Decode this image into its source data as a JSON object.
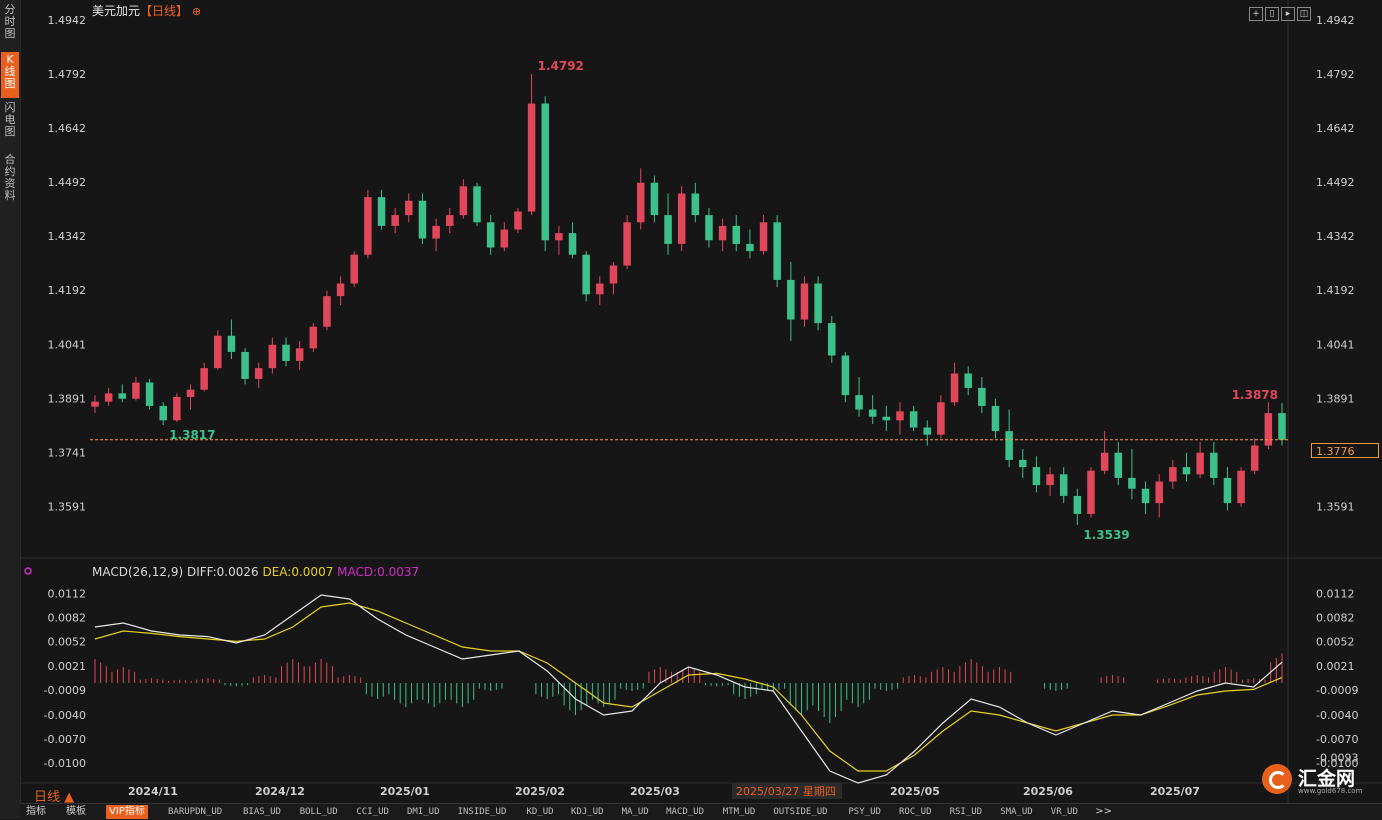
{
  "sidebar": {
    "tabs": [
      {
        "label": "分\n时\n图",
        "active": false
      },
      {
        "label": "K\n线\n图",
        "active": true
      },
      {
        "label": "闪\n电\n图",
        "active": false
      },
      {
        "label": "合\n约\n资\n料",
        "active": false
      }
    ]
  },
  "header": {
    "symbol": "美元加元",
    "period_tag": "【日线】",
    "add_icon": "circle-plus-icon"
  },
  "toolbar_icons": [
    "crosshair-icon",
    "fit-icon",
    "play-icon",
    "zoom-icon"
  ],
  "current_price_label": "1.3776",
  "macd_legend": {
    "name": "MACD(26,12,9)",
    "diff": "DIFF:0.0026",
    "dea": "DEA:0.0007",
    "macd": "MACD:0.0037",
    "colors": {
      "diff": "#e8e8e8",
      "dea": "#e6d21e",
      "macd": "#d22cc8"
    }
  },
  "period_label": "日线 ▲",
  "logo": {
    "name": "汇金网",
    "url": "www.gold678.com"
  },
  "bottom_bar": {
    "items": [
      "指标",
      "模板",
      "VIP指标",
      "BARUPDN_UD",
      "BIAS_UD",
      "BOLL_UD",
      "CCI_UD",
      "DMI_UD",
      "INSIDE_UD",
      "KD_UD",
      "KDJ_UD",
      "MA_UD",
      "MACD_UD",
      "MTM_UD",
      "OUTSIDE_UD",
      "PSY_UD",
      "ROC_UD",
      "RSI_UD",
      "SMA_UD",
      "VR_UD",
      ">>"
    ]
  },
  "colors": {
    "up": "#e0475b",
    "down": "#3cc18c",
    "accent": "#e8601c",
    "dashed_line": "#f39a3c"
  },
  "chart_data": [
    {
      "type": "candlestick",
      "title": "美元加元【日线】",
      "y_ticks": [
        "1.4942",
        "1.4792",
        "1.4642",
        "1.4492",
        "1.4342",
        "1.4192",
        "1.4041",
        "1.3891",
        "1.3741",
        "1.3591"
      ],
      "ylim": [
        1.3442,
        1.4942
      ],
      "x_ticks": [
        "2024/11",
        "2024/12",
        "2025/01",
        "2025/02",
        "2025/03",
        "2025/03/27 星期四",
        "2025/05",
        "2025/06",
        "2025/07"
      ],
      "current_price": 1.3776,
      "annotations": [
        {
          "text": "1.4792",
          "value": 1.4792,
          "kind": "high"
        },
        {
          "text": "1.3817",
          "value": 1.3817,
          "kind": "low"
        },
        {
          "text": "1.3539",
          "value": 1.3539,
          "kind": "low"
        },
        {
          "text": "1.3878",
          "value": 1.3878,
          "kind": "high"
        }
      ],
      "ohlc_sampled": [
        [
          1.3868,
          1.39,
          1.385,
          1.3882
        ],
        [
          1.3882,
          1.392,
          1.387,
          1.3905
        ],
        [
          1.3905,
          1.393,
          1.388,
          1.389
        ],
        [
          1.389,
          1.395,
          1.3885,
          1.3935
        ],
        [
          1.3935,
          1.3945,
          1.386,
          1.387
        ],
        [
          1.387,
          1.388,
          1.3817,
          1.383
        ],
        [
          1.383,
          1.3905,
          1.3825,
          1.3895
        ],
        [
          1.3895,
          1.393,
          1.386,
          1.3915
        ],
        [
          1.3915,
          1.399,
          1.391,
          1.3975
        ],
        [
          1.3975,
          1.408,
          1.397,
          1.4065
        ],
        [
          1.4065,
          1.411,
          1.4,
          1.402
        ],
        [
          1.402,
          1.403,
          1.393,
          1.3945
        ],
        [
          1.3945,
          1.399,
          1.392,
          1.3975
        ],
        [
          1.3975,
          1.406,
          1.396,
          1.404
        ],
        [
          1.404,
          1.406,
          1.398,
          1.3995
        ],
        [
          1.3995,
          1.405,
          1.397,
          1.403
        ],
        [
          1.403,
          1.41,
          1.402,
          1.409
        ],
        [
          1.409,
          1.419,
          1.408,
          1.4175
        ],
        [
          1.4175,
          1.423,
          1.415,
          1.421
        ],
        [
          1.421,
          1.43,
          1.42,
          1.429
        ],
        [
          1.429,
          1.447,
          1.428,
          1.445
        ],
        [
          1.445,
          1.447,
          1.436,
          1.437
        ],
        [
          1.437,
          1.442,
          1.435,
          1.44
        ],
        [
          1.44,
          1.446,
          1.438,
          1.444
        ],
        [
          1.444,
          1.446,
          1.432,
          1.4335
        ],
        [
          1.4335,
          1.439,
          1.43,
          1.437
        ],
        [
          1.437,
          1.442,
          1.435,
          1.44
        ],
        [
          1.44,
          1.45,
          1.439,
          1.448
        ],
        [
          1.448,
          1.449,
          1.437,
          1.438
        ],
        [
          1.438,
          1.44,
          1.429,
          1.431
        ],
        [
          1.431,
          1.438,
          1.43,
          1.436
        ],
        [
          1.436,
          1.442,
          1.435,
          1.441
        ],
        [
          1.441,
          1.4792,
          1.44,
          1.471
        ],
        [
          1.471,
          1.473,
          1.43,
          1.433
        ],
        [
          1.433,
          1.437,
          1.429,
          1.435
        ],
        [
          1.435,
          1.438,
          1.428,
          1.429
        ],
        [
          1.429,
          1.43,
          1.416,
          1.418
        ],
        [
          1.418,
          1.423,
          1.415,
          1.421
        ],
        [
          1.421,
          1.427,
          1.418,
          1.426
        ],
        [
          1.426,
          1.44,
          1.425,
          1.438
        ],
        [
          1.438,
          1.453,
          1.436,
          1.449
        ],
        [
          1.449,
          1.451,
          1.438,
          1.44
        ],
        [
          1.44,
          1.446,
          1.429,
          1.432
        ],
        [
          1.432,
          1.448,
          1.43,
          1.446
        ],
        [
          1.446,
          1.449,
          1.438,
          1.44
        ],
        [
          1.44,
          1.442,
          1.431,
          1.433
        ],
        [
          1.433,
          1.439,
          1.43,
          1.437
        ],
        [
          1.437,
          1.44,
          1.43,
          1.432
        ],
        [
          1.432,
          1.436,
          1.428,
          1.43
        ],
        [
          1.43,
          1.44,
          1.429,
          1.438
        ],
        [
          1.438,
          1.44,
          1.42,
          1.422
        ],
        [
          1.422,
          1.427,
          1.405,
          1.411
        ],
        [
          1.411,
          1.423,
          1.409,
          1.421
        ],
        [
          1.421,
          1.423,
          1.408,
          1.41
        ],
        [
          1.41,
          1.412,
          1.399,
          1.401
        ],
        [
          1.401,
          1.402,
          1.388,
          1.39
        ],
        [
          1.39,
          1.395,
          1.384,
          1.386
        ],
        [
          1.386,
          1.39,
          1.382,
          1.384
        ],
        [
          1.384,
          1.387,
          1.38,
          1.383
        ],
        [
          1.383,
          1.388,
          1.379,
          1.3855
        ],
        [
          1.3855,
          1.387,
          1.38,
          1.381
        ],
        [
          1.381,
          1.383,
          1.376,
          1.379
        ],
        [
          1.379,
          1.39,
          1.378,
          1.388
        ],
        [
          1.388,
          1.399,
          1.387,
          1.396
        ],
        [
          1.396,
          1.398,
          1.39,
          1.392
        ],
        [
          1.392,
          1.395,
          1.385,
          1.387
        ],
        [
          1.387,
          1.389,
          1.378,
          1.38
        ],
        [
          1.38,
          1.386,
          1.37,
          1.372
        ],
        [
          1.372,
          1.375,
          1.367,
          1.37
        ],
        [
          1.37,
          1.373,
          1.363,
          1.365
        ],
        [
          1.365,
          1.37,
          1.362,
          1.368
        ],
        [
          1.368,
          1.37,
          1.36,
          1.362
        ],
        [
          1.362,
          1.364,
          1.3539,
          1.357
        ],
        [
          1.357,
          1.37,
          1.356,
          1.369
        ],
        [
          1.369,
          1.38,
          1.368,
          1.374
        ],
        [
          1.374,
          1.377,
          1.365,
          1.367
        ],
        [
          1.367,
          1.375,
          1.361,
          1.364
        ],
        [
          1.364,
          1.366,
          1.357,
          1.36
        ],
        [
          1.36,
          1.368,
          1.356,
          1.366
        ],
        [
          1.366,
          1.372,
          1.364,
          1.37
        ],
        [
          1.37,
          1.374,
          1.366,
          1.368
        ],
        [
          1.368,
          1.377,
          1.367,
          1.374
        ],
        [
          1.374,
          1.377,
          1.365,
          1.367
        ],
        [
          1.367,
          1.37,
          1.358,
          1.36
        ],
        [
          1.36,
          1.37,
          1.359,
          1.369
        ],
        [
          1.369,
          1.378,
          1.368,
          1.376
        ],
        [
          1.376,
          1.388,
          1.375,
          1.385
        ],
        [
          1.385,
          1.3878,
          1.376,
          1.3776
        ]
      ]
    },
    {
      "type": "macd",
      "y_ticks": [
        "0.0112",
        "0.0082",
        "0.0052",
        "0.0021",
        "-0.0009",
        "-0.0040",
        "-0.0070",
        "-0.0100"
      ],
      "ylim": [
        -0.0125,
        0.0125
      ],
      "current_value_label": "-0.0093",
      "diff": [
        0.007,
        0.0075,
        0.0065,
        0.006,
        0.0058,
        0.005,
        0.006,
        0.0085,
        0.011,
        0.0105,
        0.008,
        0.006,
        0.0045,
        0.003,
        0.0035,
        0.004,
        0.0015,
        -0.002,
        -0.004,
        -0.0035,
        0.0,
        0.002,
        0.001,
        -0.0005,
        -0.001,
        -0.006,
        -0.011,
        -0.0125,
        -0.0115,
        -0.0085,
        -0.005,
        -0.002,
        -0.003,
        -0.005,
        -0.0065,
        -0.005,
        -0.0035,
        -0.004,
        -0.0025,
        -0.001,
        0.0,
        -0.0005,
        0.0026
      ],
      "dea": [
        0.0055,
        0.0065,
        0.0062,
        0.0058,
        0.0055,
        0.0052,
        0.0055,
        0.007,
        0.0095,
        0.01,
        0.009,
        0.0075,
        0.006,
        0.0045,
        0.004,
        0.004,
        0.0025,
        0.0,
        -0.0025,
        -0.003,
        -0.001,
        0.001,
        0.0012,
        0.0005,
        -0.0005,
        -0.004,
        -0.0085,
        -0.011,
        -0.011,
        -0.009,
        -0.006,
        -0.0035,
        -0.004,
        -0.005,
        -0.006,
        -0.005,
        -0.004,
        -0.004,
        -0.0028,
        -0.0015,
        -0.001,
        -0.0008,
        0.0007
      ],
      "macd": [
        0.003,
        0.002,
        0.0006,
        0.0004,
        0.0006,
        -0.0004,
        0.001,
        0.003,
        0.003,
        0.001,
        -0.002,
        -0.003,
        -0.003,
        -0.003,
        -0.001,
        0.0,
        -0.002,
        -0.004,
        -0.003,
        -0.001,
        0.002,
        0.002,
        -0.0004,
        -0.002,
        -0.001,
        -0.004,
        -0.005,
        -0.003,
        -0.001,
        0.001,
        0.002,
        0.003,
        0.002,
        0.0,
        -0.001,
        0.0,
        0.001,
        0.0,
        0.0006,
        0.001,
        0.002,
        0.0006,
        0.0037
      ]
    }
  ]
}
